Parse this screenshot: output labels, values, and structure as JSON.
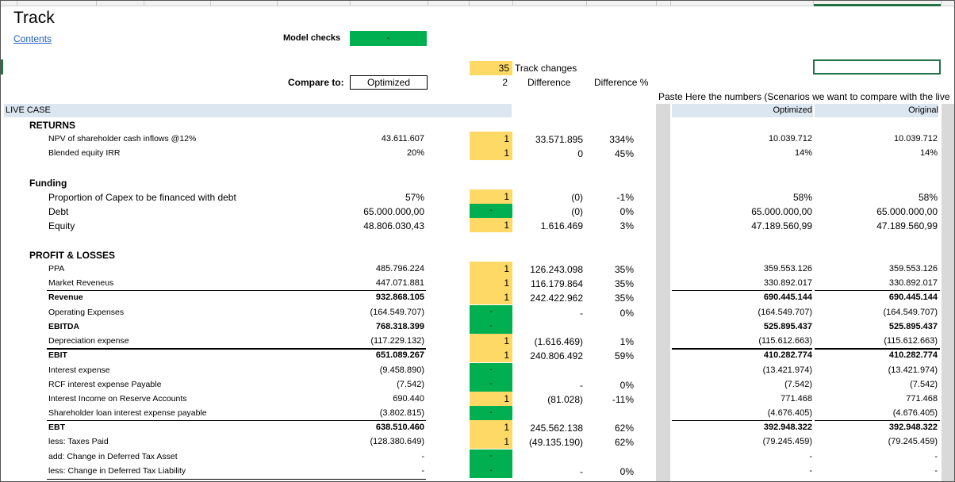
{
  "title": "Track",
  "contents_link": "Contents",
  "model_checks": {
    "label": "Model checks",
    "value": "-"
  },
  "track_changes": {
    "count": "35",
    "label": "Track changes"
  },
  "compare": {
    "label": "Compare to:",
    "value": "Optimized",
    "index": "2",
    "difference_label": "Difference",
    "difference_pct_label": "Difference %"
  },
  "paste_note": "Paste Here the numbers (Scenarios we want to compare with the live",
  "live_case_label": "LIVE CASE",
  "col_headers": {
    "optimized": "Optimized",
    "original": "Original"
  },
  "sections": {
    "returns": "RETURNS",
    "funding": "Funding",
    "pnl": "PROFIT & LOSSES"
  },
  "rows": [
    {
      "label": "NPV of shareholder cash inflows  @12%",
      "live": "43.611.607",
      "flag": "1",
      "diff": "33.571.895",
      "pct": "334%",
      "opt": "10.039.712",
      "orig": "10.039.712"
    },
    {
      "label": "Blended equity IRR",
      "live": "20%",
      "flag": "1",
      "diff": "0",
      "pct": "45%",
      "opt": "14%",
      "orig": "14%"
    },
    {
      "label": "Proportion of Capex to be financed with debt",
      "live": "57%",
      "flag": "1",
      "diff": "(0)",
      "pct": "-1%",
      "opt": "58%",
      "orig": "58%"
    },
    {
      "label": "Debt",
      "live": "65.000.000,00",
      "flag": "-",
      "diff": "(0)",
      "pct": "0%",
      "opt": "65.000.000,00",
      "orig": "65.000.000,00"
    },
    {
      "label": "Equity",
      "live": "48.806.030,43",
      "flag": "1",
      "diff": "1.616.469",
      "pct": "3%",
      "opt": "47.189.560,99",
      "orig": "47.189.560,99"
    },
    {
      "label": "PPA",
      "live": "485.796.224",
      "flag": "1",
      "diff": "126.243.098",
      "pct": "35%",
      "opt": "359.553.126",
      "orig": "359.553.126"
    },
    {
      "label": "Market Reveneus",
      "live": "447.071.881",
      "flag": "1",
      "diff": "116.179.864",
      "pct": "35%",
      "opt": "330.892.017",
      "orig": "330.892.017"
    },
    {
      "label": "Revenue",
      "live": "932.868.105",
      "flag": "1",
      "diff": "242.422.962",
      "pct": "35%",
      "opt": "690.445.144",
      "orig": "690.445.144"
    },
    {
      "label": "Operating Expenses",
      "live": "(164.549.707)",
      "flag": "-",
      "diff": "-",
      "pct": "0%",
      "opt": "(164.549.707)",
      "orig": "(164.549.707)"
    },
    {
      "label": "EBITDA",
      "live": "768.318.399",
      "flag": "-",
      "diff": "",
      "pct": "",
      "opt": "525.895.437",
      "orig": "525.895.437"
    },
    {
      "label": "Depreciation expense",
      "live": "(117.229.132)",
      "flag": "1",
      "diff": "(1.616.469)",
      "pct": "1%",
      "opt": "(115.612.663)",
      "orig": "(115.612.663)"
    },
    {
      "label": "EBIT",
      "live": "651.089.267",
      "flag": "1",
      "diff": "240.806.492",
      "pct": "59%",
      "opt": "410.282.774",
      "orig": "410.282.774"
    },
    {
      "label": "Interest expense",
      "live": "(9.458.890)",
      "flag": "-",
      "diff": "",
      "pct": "",
      "opt": "(13.421.974)",
      "orig": "(13.421.974)"
    },
    {
      "label": "RCF interest expense Payable",
      "live": "(7.542)",
      "flag": "-",
      "diff": "-",
      "pct": "0%",
      "opt": "(7.542)",
      "orig": "(7.542)"
    },
    {
      "label": "Interest Income on Reserve Accounts",
      "live": "690.440",
      "flag": "1",
      "diff": "(81.028)",
      "pct": "-11%",
      "opt": "771.468",
      "orig": "771.468"
    },
    {
      "label": "Shareholder loan interest expense payable",
      "live": "(3.802.815)",
      "flag": "-",
      "diff": "",
      "pct": "",
      "opt": "(4.676.405)",
      "orig": "(4.676.405)"
    },
    {
      "label": "EBT",
      "live": "638.510.460",
      "flag": "1",
      "diff": "245.562.138",
      "pct": "62%",
      "opt": "392.948.322",
      "orig": "392.948.322"
    },
    {
      "label": "less: Taxes Paid",
      "live": "(128.380.649)",
      "flag": "1",
      "diff": "(49.135.190)",
      "pct": "62%",
      "opt": "(79.245.459)",
      "orig": "(79.245.459)"
    },
    {
      "label": "add: Change in Deferred Tax Asset",
      "live": "-",
      "flag": "-",
      "diff": "",
      "pct": "",
      "opt": "-",
      "orig": "-"
    },
    {
      "label": "less: Change in Deferred Tax Liability",
      "live": "-",
      "flag": "-",
      "diff": "-",
      "pct": "0%",
      "opt": "-",
      "orig": "-"
    }
  ]
}
